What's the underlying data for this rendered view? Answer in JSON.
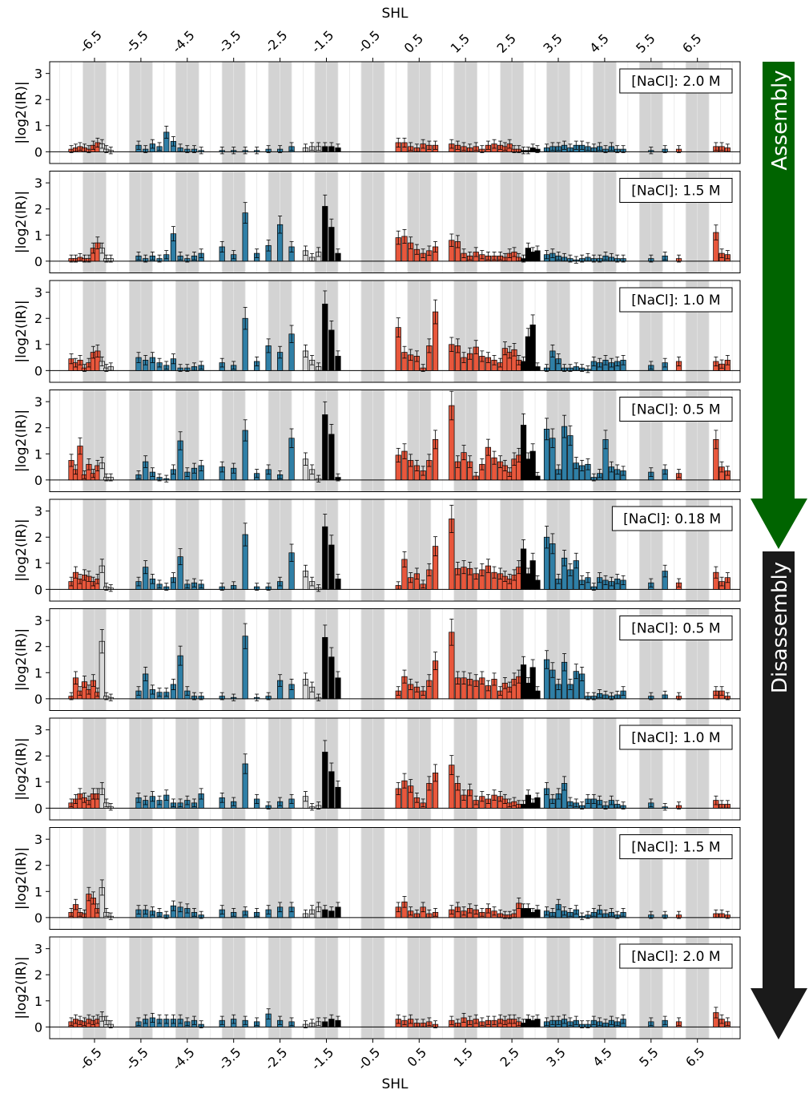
{
  "chart_data": {
    "type": "bar",
    "xlabel_top": "SHL",
    "xlabel_bottom": "SHL",
    "ylabel": "|log2(IR)|",
    "ylim": [
      -0.45,
      3.45
    ],
    "yticks": [
      "0",
      "1",
      "2",
      "3"
    ],
    "xticks": [
      "-6.5",
      "-5.5",
      "-4.5",
      "-3.5",
      "-2.5",
      "-1.5",
      "-0.5",
      "0.5",
      "1.5",
      "2.5",
      "3.5",
      "4.5",
      "5.5",
      "6.5"
    ],
    "colors": {
      "red": "#e8573c",
      "blue": "#2f7fa6",
      "black": "#000000",
      "light": "#d9d9d9",
      "shade": "#d3d3d3"
    },
    "series_colors_by_bar": [
      "red",
      "red",
      "red",
      "red",
      "red",
      "red",
      "red",
      "light",
      "light",
      "light",
      "blue",
      "blue",
      "blue",
      "blue",
      "blue",
      "blue",
      "blue",
      "blue",
      "blue",
      "blue",
      "blue",
      "blue",
      "blue",
      "blue",
      "blue",
      "blue",
      "blue",
      "light",
      "light",
      "light",
      "black",
      "black",
      "black",
      "red",
      "red",
      "red",
      "red",
      "red",
      "red",
      "red",
      "red",
      "red",
      "red",
      "red",
      "red",
      "red",
      "red",
      "red",
      "red",
      "red",
      "red",
      "red",
      "red",
      "black",
      "black",
      "black",
      "black",
      "blue",
      "blue",
      "blue",
      "blue",
      "blue",
      "blue",
      "blue",
      "blue",
      "blue",
      "blue",
      "blue",
      "blue",
      "blue",
      "blue",
      "blue",
      "blue",
      "red",
      "red",
      "red"
    ],
    "panels": [
      {
        "label": "[NaCl]: 2.0 M",
        "values": [
          0.1,
          0.15,
          0.2,
          0.15,
          0.1,
          0.25,
          0.35,
          0.3,
          0.1,
          0.05,
          0.25,
          0.1,
          0.3,
          0.2,
          0.75,
          0.4,
          0.15,
          0.1,
          0.1,
          0.05,
          0.05,
          0.05,
          0.05,
          0.05,
          0.1,
          0.1,
          0.2,
          0.15,
          0.2,
          0.2,
          0.2,
          0.2,
          0.15,
          0.35,
          0.35,
          0.2,
          0.15,
          0.3,
          0.25,
          0.25,
          0.3,
          0.25,
          0.2,
          0.15,
          0.2,
          0.1,
          0.25,
          0.3,
          0.25,
          0.2,
          0.3,
          0.1,
          0.1,
          0.05,
          0.05,
          0.15,
          0.1,
          0.15,
          0.2,
          0.2,
          0.25,
          0.15,
          0.25,
          0.25,
          0.2,
          0.15,
          0.2,
          0.1,
          0.2,
          0.1,
          0.1,
          0.05,
          0.1,
          0.1,
          0.2,
          0.2,
          0.15
        ]
      },
      {
        "label": "[NaCl]: 1.5 M",
        "values": [
          0.1,
          0.1,
          0.15,
          0.1,
          0.1,
          0.5,
          0.7,
          0.5,
          0.1,
          0.1,
          0.2,
          0.1,
          0.2,
          0.1,
          0.25,
          1.05,
          0.2,
          0.1,
          0.2,
          0.3,
          0.55,
          0.25,
          1.85,
          0.3,
          0.6,
          1.4,
          0.55,
          0.4,
          0.15,
          0.35,
          2.1,
          1.3,
          0.3,
          0.9,
          0.95,
          0.7,
          0.45,
          0.3,
          0.4,
          0.55,
          0.8,
          0.75,
          0.3,
          0.2,
          0.35,
          0.25,
          0.2,
          0.2,
          0.2,
          0.15,
          0.3,
          0.35,
          0.15,
          0.1,
          0.5,
          0.35,
          0.4,
          0.25,
          0.3,
          0.2,
          0.15,
          0.1,
          0.05,
          0.1,
          0.15,
          0.1,
          0.1,
          0.2,
          0.15,
          0.1,
          0.1,
          0.1,
          0.2,
          0.1,
          1.1,
          0.3,
          0.25
        ]
      },
      {
        "label": "[NaCl]: 1.0 M",
        "values": [
          0.45,
          0.3,
          0.4,
          0.1,
          0.3,
          0.7,
          0.75,
          0.35,
          0.1,
          0.15,
          0.5,
          0.4,
          0.5,
          0.3,
          0.2,
          0.45,
          0.1,
          0.1,
          0.15,
          0.2,
          0.3,
          0.2,
          2.0,
          0.35,
          0.95,
          0.7,
          1.4,
          0.75,
          0.4,
          0.15,
          2.55,
          1.55,
          0.55,
          1.65,
          0.7,
          0.6,
          0.55,
          0.1,
          0.95,
          2.25,
          1.0,
          0.95,
          0.5,
          0.65,
          0.9,
          0.55,
          0.5,
          0.4,
          0.3,
          0.85,
          0.7,
          0.8,
          0.4,
          0.35,
          1.3,
          1.75,
          0.15,
          0.1,
          0.75,
          0.45,
          0.1,
          0.1,
          0.15,
          0.1,
          0.05,
          0.35,
          0.3,
          0.4,
          0.3,
          0.35,
          0.4,
          0.2,
          0.3,
          0.35,
          0.35,
          0.25,
          0.4
        ]
      },
      {
        "label": "[NaCl]: 0.5 M",
        "values": [
          0.75,
          0.4,
          1.3,
          0.2,
          0.6,
          0.25,
          0.55,
          0.65,
          0.1,
          0.1,
          0.2,
          0.7,
          0.3,
          0.1,
          0.05,
          0.4,
          1.5,
          0.3,
          0.45,
          0.55,
          0.5,
          0.45,
          1.9,
          0.25,
          0.4,
          0.2,
          1.6,
          0.8,
          0.4,
          0.05,
          2.5,
          1.75,
          0.1,
          0.95,
          1.1,
          0.75,
          0.55,
          0.35,
          0.75,
          1.55,
          2.85,
          0.7,
          1.05,
          0.7,
          0.15,
          0.6,
          1.25,
          0.85,
          0.7,
          0.55,
          0.3,
          0.8,
          0.95,
          2.1,
          0.8,
          1.1,
          0.15,
          1.95,
          1.6,
          0.4,
          2.05,
          1.7,
          0.65,
          0.55,
          0.6,
          0.1,
          0.25,
          1.55,
          0.5,
          0.4,
          0.35,
          0.3,
          0.4,
          0.25,
          1.55,
          0.5,
          0.35
        ]
      },
      {
        "label": "[NaCl]: 0.18 M",
        "values": [
          0.3,
          0.65,
          0.4,
          0.55,
          0.5,
          0.3,
          0.4,
          0.9,
          0.1,
          0.05,
          0.3,
          0.85,
          0.4,
          0.2,
          0.1,
          0.45,
          1.25,
          0.2,
          0.25,
          0.2,
          0.1,
          0.15,
          2.1,
          0.1,
          0.1,
          0.3,
          1.4,
          0.7,
          0.3,
          0.05,
          2.4,
          1.7,
          0.4,
          0.15,
          1.15,
          0.45,
          0.6,
          0.2,
          0.75,
          1.65,
          2.7,
          0.8,
          0.85,
          0.8,
          0.6,
          0.75,
          0.9,
          0.65,
          0.6,
          0.5,
          0.4,
          0.55,
          0.85,
          1.55,
          0.6,
          1.1,
          0.35,
          2.0,
          1.75,
          0.4,
          1.2,
          0.75,
          1.1,
          0.35,
          0.45,
          0.1,
          0.45,
          0.35,
          0.3,
          0.4,
          0.35,
          0.25,
          0.7,
          0.25,
          0.65,
          0.3,
          0.45
        ]
      },
      {
        "label": "[NaCl]: 0.5 M",
        "values": [
          0.1,
          0.8,
          0.3,
          0.65,
          0.35,
          0.7,
          0.25,
          2.2,
          0.1,
          0.05,
          0.3,
          0.95,
          0.35,
          0.25,
          0.25,
          0.55,
          1.65,
          0.3,
          0.1,
          0.1,
          0.1,
          0.05,
          2.4,
          0.05,
          0.1,
          0.7,
          0.55,
          0.75,
          0.45,
          0.05,
          2.35,
          1.6,
          0.8,
          0.3,
          0.85,
          0.55,
          0.45,
          0.3,
          0.7,
          1.45,
          2.55,
          0.8,
          0.8,
          0.75,
          0.7,
          0.8,
          0.5,
          0.75,
          0.3,
          0.6,
          0.45,
          0.75,
          0.85,
          1.3,
          0.6,
          1.2,
          0.3,
          1.5,
          1.1,
          0.55,
          1.4,
          0.55,
          1.05,
          0.95,
          0.1,
          0.1,
          0.2,
          0.15,
          0.1,
          0.15,
          0.3,
          0.1,
          0.15,
          0.1,
          0.3,
          0.3,
          0.1
        ]
      },
      {
        "label": "[NaCl]: 1.0 M",
        "values": [
          0.2,
          0.35,
          0.55,
          0.4,
          0.3,
          0.55,
          0.55,
          0.75,
          0.2,
          0.05,
          0.4,
          0.3,
          0.45,
          0.3,
          0.5,
          0.2,
          0.2,
          0.3,
          0.2,
          0.55,
          0.4,
          0.25,
          1.7,
          0.35,
          0.1,
          0.25,
          0.35,
          0.45,
          0.05,
          0.1,
          2.15,
          1.4,
          0.8,
          0.75,
          1.05,
          0.85,
          0.4,
          0.2,
          0.95,
          1.35,
          1.65,
          0.95,
          0.5,
          0.7,
          0.3,
          0.45,
          0.35,
          0.5,
          0.45,
          0.35,
          0.2,
          0.25,
          0.15,
          0.15,
          0.5,
          0.2,
          0.4,
          0.75,
          0.35,
          0.55,
          0.95,
          0.25,
          0.2,
          0.1,
          0.35,
          0.35,
          0.3,
          0.1,
          0.3,
          0.15,
          0.1,
          0.2,
          0.05,
          0.1,
          0.3,
          0.15,
          0.15
        ]
      },
      {
        "label": "[NaCl]: 1.5 M",
        "values": [
          0.2,
          0.5,
          0.2,
          0.15,
          0.9,
          0.75,
          0.35,
          1.15,
          0.2,
          0.05,
          0.3,
          0.3,
          0.25,
          0.2,
          0.1,
          0.45,
          0.4,
          0.35,
          0.2,
          0.1,
          0.3,
          0.2,
          0.25,
          0.2,
          0.3,
          0.4,
          0.4,
          0.15,
          0.3,
          0.4,
          0.3,
          0.25,
          0.4,
          0.4,
          0.6,
          0.25,
          0.15,
          0.4,
          0.15,
          0.2,
          0.3,
          0.4,
          0.25,
          0.35,
          0.3,
          0.2,
          0.35,
          0.25,
          0.15,
          0.1,
          0.1,
          0.15,
          0.55,
          0.35,
          0.35,
          0.2,
          0.3,
          0.25,
          0.2,
          0.5,
          0.25,
          0.2,
          0.3,
          0.05,
          0.1,
          0.2,
          0.3,
          0.15,
          0.2,
          0.1,
          0.2,
          0.1,
          0.1,
          0.1,
          0.15,
          0.15,
          0.1
        ]
      },
      {
        "label": "[NaCl]: 2.0 M",
        "values": [
          0.2,
          0.3,
          0.25,
          0.2,
          0.3,
          0.25,
          0.3,
          0.4,
          0.25,
          0.1,
          0.2,
          0.3,
          0.35,
          0.3,
          0.3,
          0.3,
          0.3,
          0.2,
          0.25,
          0.1,
          0.25,
          0.3,
          0.25,
          0.2,
          0.5,
          0.25,
          0.2,
          0.1,
          0.15,
          0.2,
          0.2,
          0.3,
          0.25,
          0.3,
          0.25,
          0.3,
          0.15,
          0.15,
          0.2,
          0.1,
          0.25,
          0.15,
          0.35,
          0.25,
          0.3,
          0.2,
          0.25,
          0.25,
          0.3,
          0.25,
          0.3,
          0.3,
          0.2,
          0.15,
          0.3,
          0.25,
          0.3,
          0.2,
          0.25,
          0.25,
          0.3,
          0.2,
          0.25,
          0.1,
          0.1,
          0.25,
          0.2,
          0.15,
          0.25,
          0.2,
          0.3,
          0.2,
          0.25,
          0.2,
          0.55,
          0.3,
          0.2
        ]
      }
    ],
    "legend": "none",
    "grid": true
  },
  "arrows": {
    "assembly": {
      "label": "Assembly",
      "color": "#006400"
    },
    "disassembly": {
      "label": "Disassembly",
      "color": "#1a1a1a"
    }
  }
}
